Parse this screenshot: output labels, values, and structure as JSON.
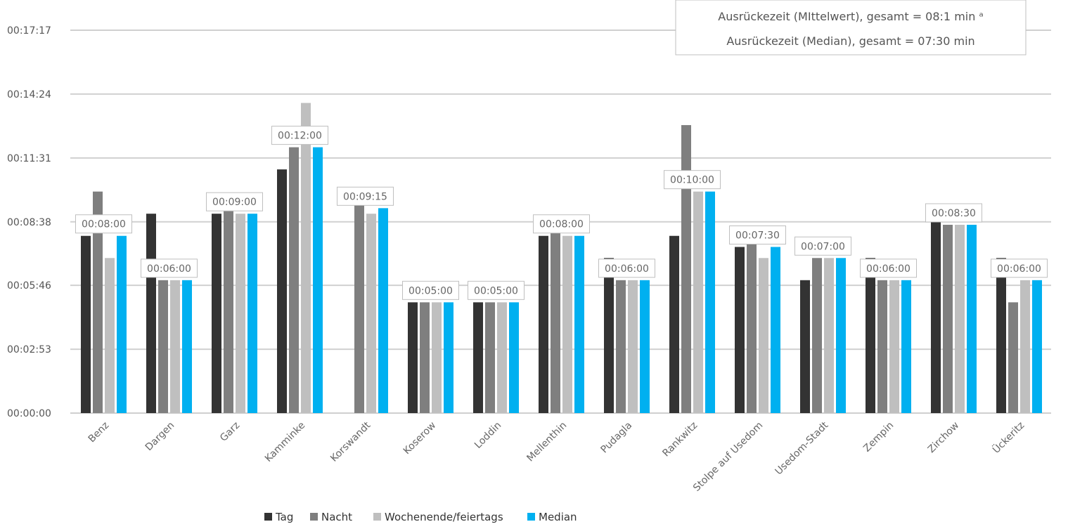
{
  "chart_data": {
    "type": "bar",
    "title": "",
    "xlabel": "",
    "ylabel": "",
    "ylim": [
      "00:00:00",
      "00:17:17"
    ],
    "yticks": [
      "00:00:00",
      "00:02:53",
      "00:05:46",
      "00:08:38",
      "00:11:31",
      "00:14:24",
      "00:17:17"
    ],
    "grid": true,
    "legend_position": "bottom",
    "categories": [
      "Benz",
      "Dargen",
      "Garz",
      "Kamminke",
      "Korswandt",
      "Koserow",
      "Loddin",
      "Mellenthin",
      "Pudagla",
      "Rankwitz",
      "Stolpe auf Usedom",
      "Usedom-Stadt",
      "Zempin",
      "Zirchow",
      "Ückeritz"
    ],
    "series": [
      {
        "name": "Tag",
        "color": "#333333",
        "values": [
          "00:08:00",
          "00:09:00",
          "00:09:00",
          "00:11:00",
          null,
          "00:05:00",
          "00:05:00",
          "00:08:00",
          "00:07:00",
          "00:08:00",
          "00:07:30",
          "00:06:00",
          "00:07:00",
          "00:09:00",
          "00:07:00"
        ]
      },
      {
        "name": "Nacht",
        "color": "#7f7f7f",
        "values": [
          "00:10:00",
          "00:06:00",
          "00:09:15",
          "00:12:00",
          "00:09:30",
          "00:05:00",
          "00:05:00",
          "00:08:15",
          "00:06:00",
          "00:13:00",
          "00:07:45",
          "00:07:00",
          "00:06:00",
          "00:08:30",
          "00:05:00"
        ]
      },
      {
        "name": "Wochenende/feiertags",
        "color": "#bfbfbf",
        "values": [
          "00:07:00",
          "00:06:00",
          "00:09:00",
          "00:14:00",
          "00:09:00",
          "00:05:00",
          "00:05:00",
          "00:08:00",
          "00:06:00",
          "00:10:00",
          "00:07:00",
          "00:07:00",
          "00:06:00",
          "00:08:30",
          "00:06:00"
        ]
      },
      {
        "name": "Median",
        "color": "#00b0f0",
        "values": [
          "00:08:00",
          "00:06:00",
          "00:09:00",
          "00:12:00",
          "00:09:15",
          "00:05:00",
          "00:05:00",
          "00:08:00",
          "00:06:00",
          "00:10:00",
          "00:07:30",
          "00:07:00",
          "00:06:00",
          "00:08:30",
          "00:06:00"
        ]
      }
    ],
    "median_labels": [
      "00:08:00",
      "00:06:00",
      "00:09:00",
      "00:12:00",
      "00:09:15",
      "00:05:00",
      "00:05:00",
      "00:08:00",
      "00:06:00",
      "00:10:00",
      "00:07:30",
      "00:07:00",
      "00:06:00",
      "00:08:30",
      "00:06:00"
    ],
    "annotation": {
      "line1": "Ausrückezeit (MIttelwert), gesamt = 08:1 min ᵃ",
      "line2": "Ausrückezeit (Median), gesamt = 07:30 min"
    }
  }
}
